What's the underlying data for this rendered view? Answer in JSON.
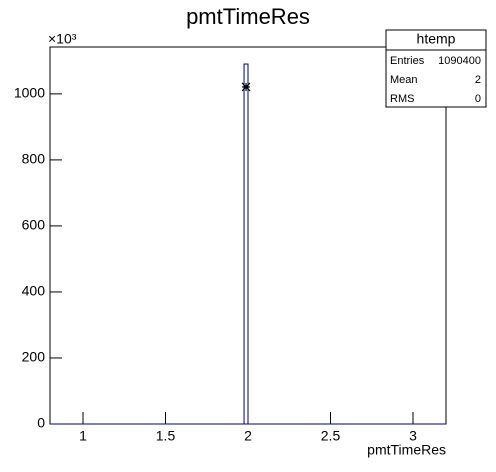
{
  "chart_data": {
    "type": "histogram",
    "title": "pmtTimeRes",
    "xlabel": "pmtTimeRes",
    "y_multiplier": "×10³",
    "bins": [
      1.976,
      2.0
    ],
    "values": [
      1090.4
    ],
    "color": "#000080",
    "marker": {
      "x": 1.988,
      "value": 1021
    },
    "xlim": [
      0.8,
      3.2
    ],
    "xticks": [
      1,
      1.5,
      2,
      2.5,
      3
    ],
    "ylim": [
      0,
      1142
    ],
    "yticks": [
      0,
      200,
      400,
      600,
      800,
      1000
    ],
    "stats": {
      "title": "htemp",
      "rows": [
        [
          "Entries",
          1090400
        ],
        [
          "Mean",
          2
        ],
        [
          "RMS",
          0
        ]
      ]
    }
  }
}
